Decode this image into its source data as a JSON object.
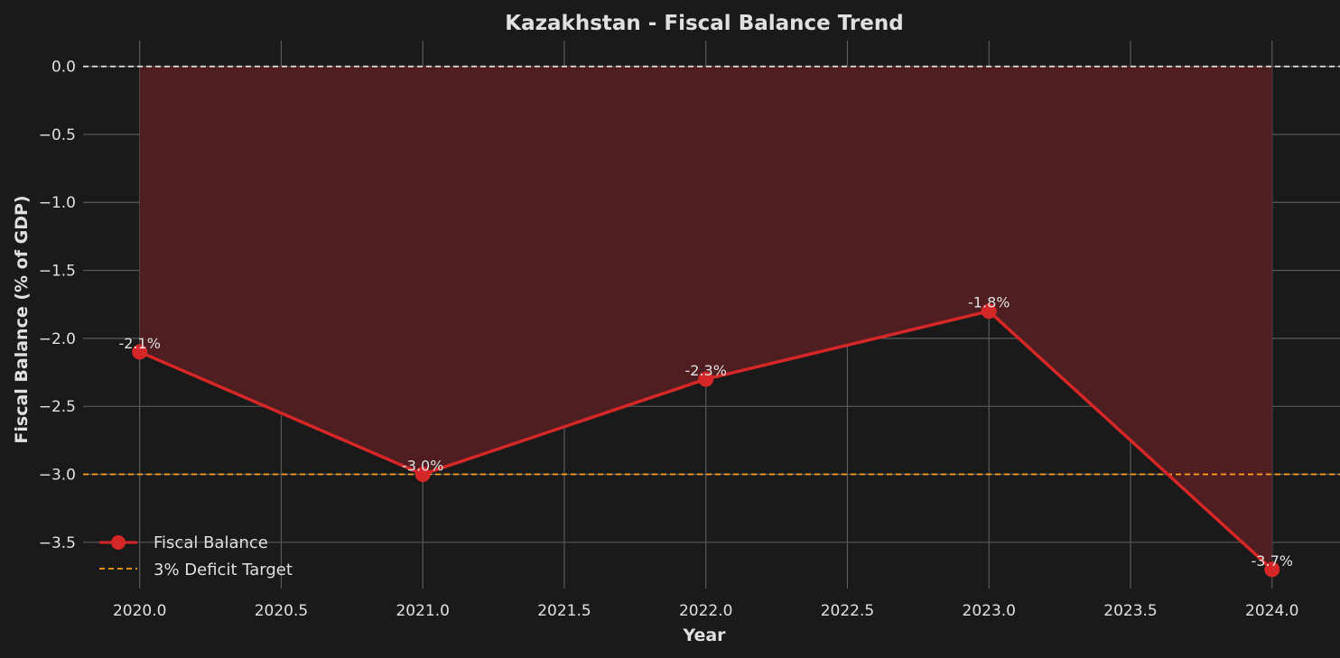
{
  "chart_data": {
    "type": "line",
    "title": "Kazakhstan - Fiscal Balance Trend",
    "xlabel": "Year",
    "ylabel": "Fiscal Balance (% of GDP)",
    "xlim": [
      2019.8,
      2024.24
    ],
    "ylim": [
      -3.84,
      0.19
    ],
    "x_ticks": [
      2020.0,
      2020.5,
      2021.0,
      2021.5,
      2022.0,
      2022.5,
      2023.0,
      2023.5,
      2024.0
    ],
    "x_tick_labels": [
      "2020.0",
      "2020.5",
      "2021.0",
      "2021.5",
      "2022.0",
      "2022.5",
      "2023.0",
      "2023.5",
      "2024.0"
    ],
    "y_ticks": [
      0.0,
      -0.5,
      -1.0,
      -1.5,
      -2.0,
      -2.5,
      -3.0,
      -3.5
    ],
    "y_tick_labels": [
      "0.0",
      "−0.5",
      "−1.0",
      "−1.5",
      "−2.0",
      "−2.5",
      "−3.0",
      "−3.5"
    ],
    "grid": true,
    "legend_position": "lower-left",
    "series": [
      {
        "name": "Fiscal Balance",
        "x": [
          2020,
          2021,
          2022,
          2023,
          2024
        ],
        "values": [
          -2.1,
          -3.0,
          -2.3,
          -1.8,
          -3.7
        ],
        "data_labels": [
          "-2.1%",
          "-3.0%",
          "-2.3%",
          "-1.8%",
          "-3.7%"
        ],
        "color": "#d62728",
        "fill_to": 0.0,
        "fill_color": "#4f1e21"
      }
    ],
    "reference_lines": [
      {
        "name": "",
        "y": 0.0,
        "color": "#e6e6e6",
        "style": "dashed"
      },
      {
        "name": "3% Deficit Target",
        "y": -3.0,
        "color": "#ff9f1c",
        "style": "dashed"
      }
    ],
    "colors": {
      "background": "#1a1a1a",
      "grid": "#5a5a5a",
      "text": "#e0e0e0"
    }
  }
}
